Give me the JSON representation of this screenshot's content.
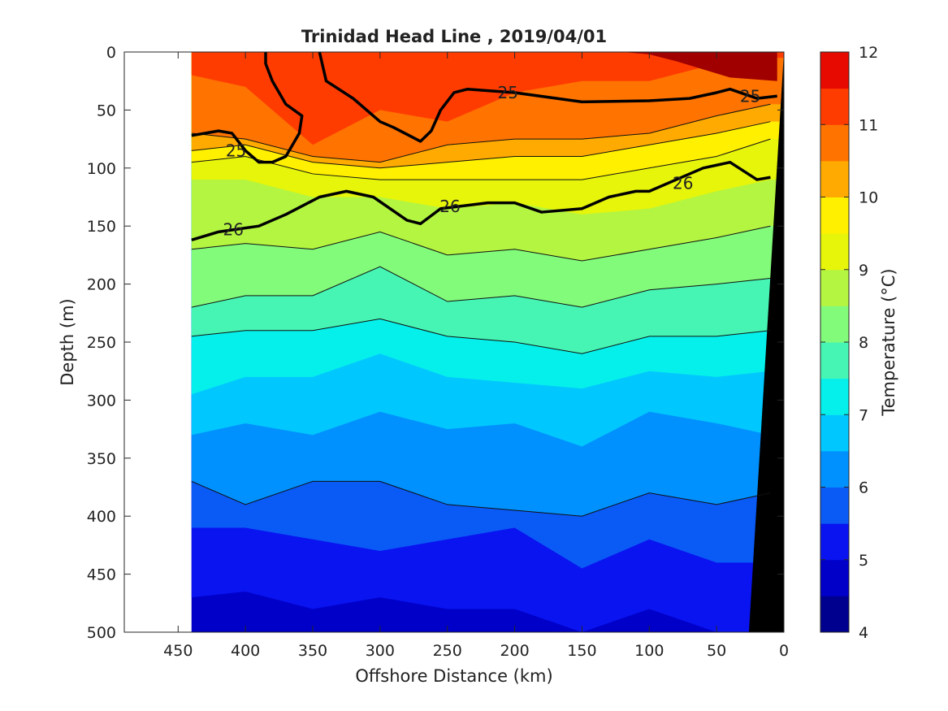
{
  "chart_data": {
    "type": "heatmap",
    "title": "Trinidad Head Line , 2019/04/01",
    "xlabel": "Offshore Distance (km)",
    "ylabel": "Depth (m)",
    "colorbar_label": "Temperature (°C)",
    "xlim": [
      490,
      0
    ],
    "ylim": [
      0,
      500
    ],
    "x_reversed": true,
    "y_reversed": true,
    "x_ticks": [
      450,
      400,
      350,
      300,
      250,
      200,
      150,
      100,
      50,
      0
    ],
    "y_ticks": [
      0,
      50,
      100,
      150,
      200,
      250,
      300,
      350,
      400,
      450,
      500
    ],
    "data_extent_km": [
      440,
      0
    ],
    "colorbar": {
      "levels": [
        4,
        4.5,
        5,
        5.5,
        6,
        6.5,
        7,
        7.5,
        8,
        8.5,
        9,
        9.5,
        10,
        10.5,
        11,
        11.5,
        12
      ],
      "ticks": [
        4,
        5,
        6,
        7,
        8,
        9,
        10,
        11,
        12
      ],
      "colors": [
        "#00008f",
        "#0000c8",
        "#0a14f0",
        "#0a5af5",
        "#0091ff",
        "#00c8ff",
        "#05f0ea",
        "#46f5b4",
        "#82fa7a",
        "#b4f541",
        "#e6f50a",
        "#fff000",
        "#ffaa00",
        "#ff7300",
        "#ff3c00",
        "#e60a00",
        "#a00000"
      ]
    },
    "temperature_isotherm_depths": {
      "x_km": [
        440,
        400,
        350,
        300,
        250,
        200,
        150,
        100,
        50,
        10
      ],
      "t_11.5": [
        0,
        0,
        0,
        0,
        0,
        0,
        0,
        0,
        0,
        0
      ],
      "t_11": [
        20,
        30,
        80,
        50,
        60,
        35,
        25,
        25,
        10,
        5
      ],
      "t_10.5": [
        70,
        75,
        90,
        95,
        80,
        75,
        75,
        70,
        55,
        45
      ],
      "t_10": [
        85,
        80,
        95,
        100,
        95,
        90,
        90,
        80,
        70,
        60
      ],
      "t_9.5": [
        95,
        90,
        105,
        110,
        110,
        110,
        110,
        100,
        90,
        75
      ],
      "t_9": [
        110,
        110,
        125,
        125,
        135,
        130,
        140,
        135,
        120,
        110
      ],
      "t_8.5": [
        170,
        165,
        170,
        155,
        175,
        170,
        180,
        170,
        160,
        150
      ],
      "t_8": [
        220,
        210,
        210,
        185,
        215,
        210,
        220,
        205,
        200,
        195
      ],
      "t_7.5": [
        245,
        240,
        240,
        230,
        245,
        250,
        260,
        245,
        245,
        240
      ],
      "t_7": [
        295,
        280,
        280,
        260,
        280,
        285,
        290,
        275,
        280,
        275
      ],
      "t_6.5": [
        330,
        320,
        330,
        310,
        325,
        320,
        340,
        310,
        320,
        330
      ],
      "t_6": [
        370,
        390,
        370,
        370,
        390,
        395,
        400,
        380,
        390,
        380
      ],
      "t_5.5": [
        410,
        410,
        420,
        430,
        420,
        410,
        445,
        420,
        440,
        440
      ],
      "t_5": [
        470,
        465,
        480,
        470,
        480,
        480,
        500,
        480,
        500,
        500
      ],
      "t_4.5": [
        520,
        520,
        520,
        520,
        520,
        520,
        520,
        520,
        520,
        520
      ]
    },
    "density_contours": [
      {
        "level": "25",
        "x_km": [
          440,
          420,
          410,
          400,
          390,
          380,
          370,
          360,
          358,
          370,
          380,
          385,
          385
        ],
        "y_m": [
          72,
          68,
          70,
          85,
          95,
          95,
          90,
          70,
          55,
          45,
          25,
          10,
          0
        ]
      },
      {
        "level": "25",
        "x_km": [
          345,
          340,
          320,
          300,
          290,
          270,
          262,
          255,
          245,
          235,
          200,
          150,
          100,
          70,
          50,
          40,
          20,
          5
        ],
        "y_m": [
          0,
          25,
          40,
          60,
          65,
          77,
          68,
          50,
          35,
          32,
          35,
          43,
          42,
          40,
          35,
          32,
          40,
          38
        ]
      },
      {
        "level": "26",
        "x_km": [
          440,
          420,
          390,
          370,
          345,
          325,
          305,
          280,
          270,
          255,
          220,
          200,
          180,
          150,
          130,
          110,
          100,
          80,
          60,
          40,
          20,
          10
        ],
        "y_m": [
          162,
          155,
          150,
          140,
          125,
          120,
          125,
          145,
          148,
          135,
          130,
          130,
          138,
          135,
          125,
          120,
          120,
          110,
          100,
          95,
          110,
          108
        ]
      }
    ],
    "contour_labels": [
      {
        "text": "25",
        "x_km": 407,
        "y_m": 85
      },
      {
        "text": "25",
        "x_km": 205,
        "y_m": 35
      },
      {
        "text": "25",
        "x_km": 25,
        "y_m": 38
      },
      {
        "text": "26",
        "x_km": 409,
        "y_m": 153
      },
      {
        "text": "26",
        "x_km": 248,
        "y_m": 133
      },
      {
        "text": "26",
        "x_km": 75,
        "y_m": 113
      }
    ]
  }
}
